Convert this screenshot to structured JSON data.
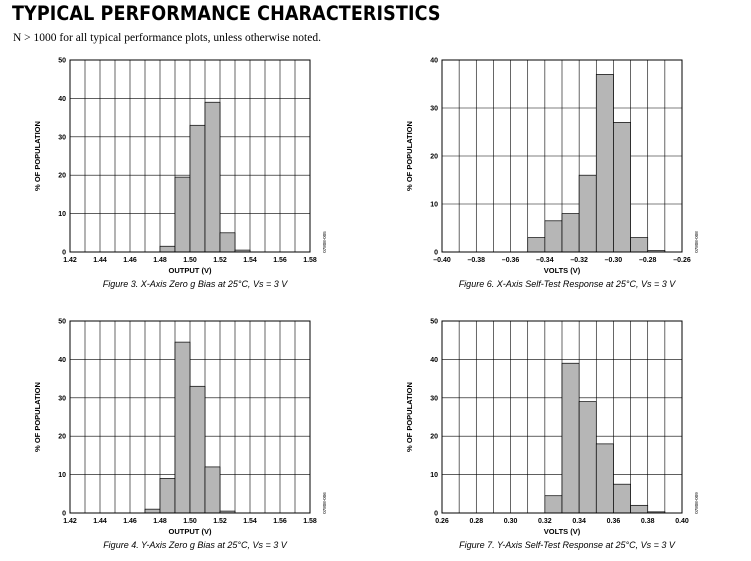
{
  "page": {
    "title": "TYPICAL PERFORMANCE CHARACTERISTICS",
    "subtitle": "N > 1000 for all typical performance plots, unless otherwise noted."
  },
  "chart_data": [
    {
      "type": "bar",
      "caption": "Figure 3. X-Axis Zero g Bias at 25°C, Vs = 3 V",
      "xlabel": "OUTPUT (V)",
      "ylabel": "% OF POPULATION",
      "figure_code": "07808-005",
      "x_ticks": [
        "1.42",
        "1.44",
        "1.46",
        "1.48",
        "1.50",
        "1.52",
        "1.54",
        "1.56",
        "1.58"
      ],
      "xlim": [
        1.42,
        1.58
      ],
      "ylim": [
        0,
        50
      ],
      "y_ticks": [
        "0",
        "10",
        "20",
        "30",
        "40",
        "50"
      ],
      "grid": true,
      "bin_width": 0.01,
      "bin_starts": [
        1.48,
        1.49,
        1.5,
        1.51,
        1.52,
        1.53
      ],
      "values": [
        1.5,
        19.5,
        33,
        39,
        5,
        0.5
      ]
    },
    {
      "type": "bar",
      "caption": "Figure 6. X-Axis Self-Test Response at 25°C, Vs = 3 V",
      "xlabel": "VOLTS (V)",
      "ylabel": "% OF POPULATION",
      "figure_code": "07808-008",
      "x_ticks": [
        "–0.40",
        "–0.38",
        "–0.36",
        "–0.34",
        "–0.32",
        "–0.30",
        "–0.28",
        "–0.26"
      ],
      "xlim": [
        -0.4,
        -0.26
      ],
      "ylim": [
        0,
        40
      ],
      "y_ticks": [
        "0",
        "10",
        "20",
        "30",
        "40"
      ],
      "grid": true,
      "bin_width": 0.01,
      "bin_starts": [
        -0.35,
        -0.34,
        -0.33,
        -0.32,
        -0.31,
        -0.3,
        -0.29,
        -0.28
      ],
      "values": [
        3,
        6.5,
        8,
        16,
        37,
        27,
        3,
        0.3
      ]
    },
    {
      "type": "bar",
      "caption": "Figure 4. Y-Axis Zero g Bias at 25°C, Vs = 3 V",
      "xlabel": "OUTPUT (V)",
      "ylabel": "% OF POPULATION",
      "figure_code": "07808-006",
      "x_ticks": [
        "1.42",
        "1.44",
        "1.46",
        "1.48",
        "1.50",
        "1.52",
        "1.54",
        "1.56",
        "1.58"
      ],
      "xlim": [
        1.42,
        1.58
      ],
      "ylim": [
        0,
        50
      ],
      "y_ticks": [
        "0",
        "10",
        "20",
        "30",
        "40",
        "50"
      ],
      "grid": true,
      "bin_width": 0.01,
      "bin_starts": [
        1.47,
        1.48,
        1.49,
        1.5,
        1.51,
        1.52
      ],
      "values": [
        1,
        9,
        44.5,
        33,
        12,
        0.5
      ]
    },
    {
      "type": "bar",
      "caption": "Figure 7. Y-Axis Self-Test Response at 25°C, Vs = 3 V",
      "xlabel": "VOLTS (V)",
      "ylabel": "% OF POPULATION",
      "figure_code": "07808-009",
      "x_ticks": [
        "0.26",
        "0.28",
        "0.30",
        "0.32",
        "0.34",
        "0.36",
        "0.38",
        "0.40"
      ],
      "xlim": [
        0.26,
        0.4
      ],
      "ylim": [
        0,
        50
      ],
      "y_ticks": [
        "0",
        "10",
        "20",
        "30",
        "40",
        "50"
      ],
      "grid": true,
      "bin_width": 0.01,
      "bin_starts": [
        0.32,
        0.33,
        0.34,
        0.35,
        0.36,
        0.37,
        0.38
      ],
      "values": [
        4.5,
        39,
        29,
        18,
        7.5,
        2,
        0.3
      ]
    }
  ]
}
